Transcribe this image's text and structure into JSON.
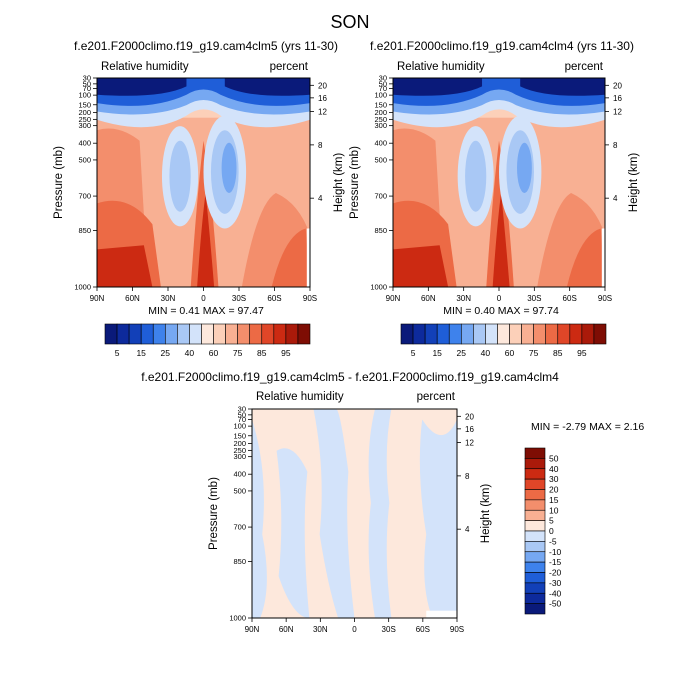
{
  "page": {
    "title": "SON"
  },
  "chart_data": [
    {
      "type": "heatmap",
      "title": "f.e201.F2000climo.f19_g19.cam4clm5 (yrs 11-30)",
      "left_label": "Relative humidity",
      "right_label": "percent",
      "ylabel": "Pressure (mb)",
      "ylabel_right": "Height (km)",
      "x_ticks": [
        "90N",
        "60N",
        "30N",
        "0",
        "30S",
        "60S",
        "90S"
      ],
      "y_ticks": [
        "30",
        "50",
        "70",
        "100",
        "150",
        "200",
        "250",
        "300",
        "400",
        "500",
        "700",
        "850",
        "1000"
      ],
      "y_ticks_right": [
        "20",
        "16",
        "12",
        "8",
        "4"
      ],
      "stats": "MIN =  0.41  MAX =  97.47",
      "colorbar": {
        "labels": [
          "5",
          "15",
          "25",
          "40",
          "60",
          "75",
          "85",
          "95"
        ],
        "colors": [
          "#0a1a7a",
          "#0d2a9c",
          "#1240b8",
          "#1f5ed8",
          "#3e82ec",
          "#76a8f2",
          "#a9c8f5",
          "#d3e3fa",
          "#fde8dc",
          "#fcd0b9",
          "#f8b093",
          "#f38e6c",
          "#ec6a45",
          "#e04628",
          "#cc2a12",
          "#aa1a0a",
          "#7e0d04"
        ]
      }
    },
    {
      "type": "heatmap",
      "title": "f.e201.F2000climo.f19_g19.cam4clm4 (yrs 11-30)",
      "left_label": "Relative humidity",
      "right_label": "percent",
      "ylabel": "Pressure (mb)",
      "ylabel_right": "Height (km)",
      "x_ticks": [
        "90N",
        "60N",
        "30N",
        "0",
        "30S",
        "60S",
        "90S"
      ],
      "y_ticks": [
        "30",
        "50",
        "70",
        "100",
        "150",
        "200",
        "250",
        "300",
        "400",
        "500",
        "700",
        "850",
        "1000"
      ],
      "y_ticks_right": [
        "20",
        "16",
        "12",
        "8",
        "4"
      ],
      "stats": "MIN =  0.40  MAX =  97.74",
      "colorbar": {
        "labels": [
          "5",
          "15",
          "25",
          "40",
          "60",
          "75",
          "85",
          "95"
        ],
        "colors": [
          "#0a1a7a",
          "#0d2a9c",
          "#1240b8",
          "#1f5ed8",
          "#3e82ec",
          "#76a8f2",
          "#a9c8f5",
          "#d3e3fa",
          "#fde8dc",
          "#fcd0b9",
          "#f8b093",
          "#f38e6c",
          "#ec6a45",
          "#e04628",
          "#cc2a12",
          "#aa1a0a",
          "#7e0d04"
        ]
      }
    },
    {
      "type": "heatmap",
      "title": "f.e201.F2000climo.f19_g19.cam4clm5 - f.e201.F2000climo.f19_g19.cam4clm4",
      "left_label": "Relative humidity",
      "right_label": "percent",
      "ylabel": "Pressure (mb)",
      "ylabel_right": "Height (km)",
      "x_ticks": [
        "90N",
        "60N",
        "30N",
        "0",
        "30S",
        "60S",
        "90S"
      ],
      "y_ticks": [
        "30",
        "50",
        "70",
        "100",
        "150",
        "200",
        "250",
        "300",
        "400",
        "500",
        "700",
        "850",
        "1000"
      ],
      "y_ticks_right": [
        "20",
        "16",
        "12",
        "8",
        "4"
      ],
      "stats": "MIN = -2.79  MAX =   2.16",
      "colorbar": {
        "labels": [
          "50",
          "40",
          "30",
          "20",
          "15",
          "10",
          "5",
          "0",
          "-5",
          "-10",
          "-15",
          "-20",
          "-30",
          "-40",
          "-50"
        ],
        "colors": [
          "#7e0d04",
          "#aa1a0a",
          "#cc2a12",
          "#e04628",
          "#ec6a45",
          "#f38e6c",
          "#f8b093",
          "#fde8dc",
          "#d3e3fa",
          "#a9c8f5",
          "#76a8f2",
          "#3e82ec",
          "#1f5ed8",
          "#1240b8",
          "#0d2a9c",
          "#0a1a7a"
        ]
      }
    }
  ]
}
